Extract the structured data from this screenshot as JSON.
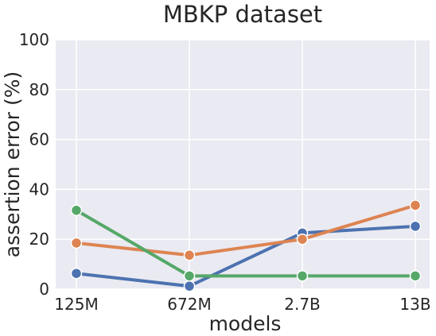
{
  "chart_data": {
    "type": "line",
    "title": "MBKP dataset",
    "xlabel": "models",
    "ylabel": "assertion error (%)",
    "categories": [
      "125M",
      "672M",
      "2.7B",
      "13B"
    ],
    "ylim": [
      0,
      100
    ],
    "yticks": [
      0,
      20,
      40,
      60,
      80,
      100
    ],
    "grid": true,
    "legend": "none",
    "background_color": "#EAEAF2",
    "grid_color": "#FFFFFF",
    "series": [
      {
        "color": "#4C72B0",
        "values": [
          6.3,
          1.2,
          22.5,
          25.2
        ]
      },
      {
        "color": "#DD8452",
        "values": [
          18.5,
          13.6,
          20.0,
          33.6
        ]
      },
      {
        "color": "#55A868",
        "values": [
          31.6,
          5.3,
          5.3,
          5.3
        ]
      }
    ]
  }
}
